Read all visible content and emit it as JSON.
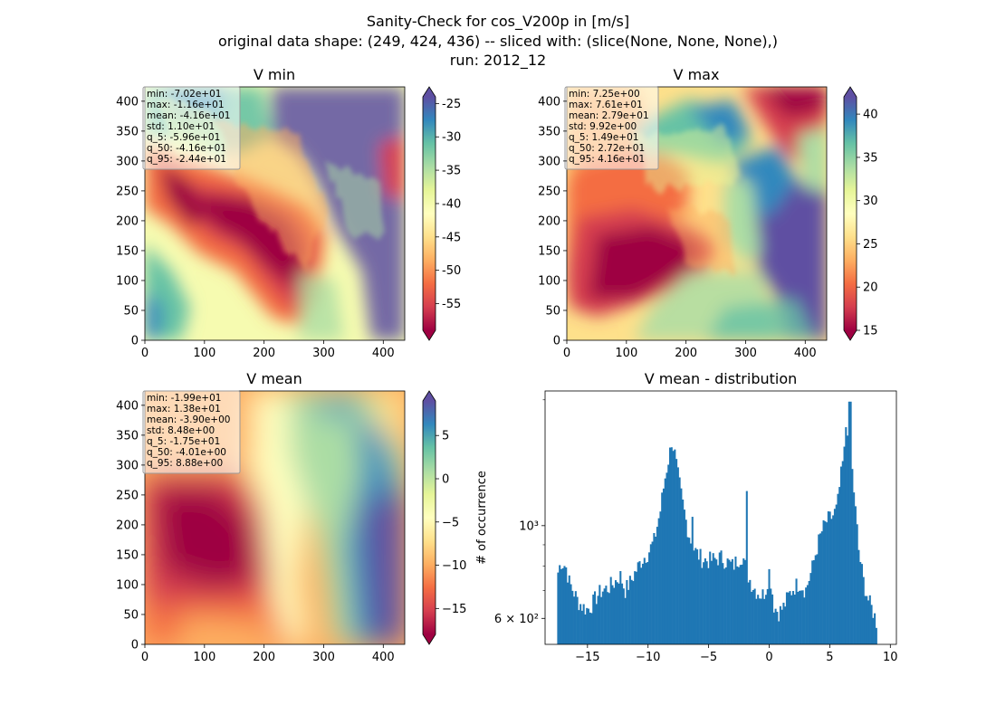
{
  "figure": {
    "title_lines": [
      "Sanity-Check for cos_V200p in [m/s]",
      "original data shape: (249, 424, 436) -- sliced with: (slice(None, None, None),)",
      "run: 2012_12"
    ]
  },
  "chart_data": [
    {
      "type": "heatmap",
      "title": "V min",
      "colormap": "Spectral",
      "xlim": [
        0,
        436
      ],
      "ylim": [
        0,
        424
      ],
      "xticks": [
        0,
        100,
        200,
        300,
        400
      ],
      "yticks": [
        0,
        50,
        100,
        150,
        200,
        250,
        300,
        350,
        400
      ],
      "colorbar": {
        "min": -59,
        "max": -24,
        "ticks": [
          "-25",
          "-30",
          "-35",
          "-40",
          "-45",
          "-50",
          "-55"
        ],
        "tick_values": [
          -25,
          -30,
          -35,
          -40,
          -45,
          -50,
          -55
        ],
        "extend": "both"
      },
      "stats": [
        "min: -7.02e+01",
        "max: -1.16e+01",
        "mean: -4.16e+01",
        "std: 1.10e+01",
        "q_5: -5.96e+01",
        "q_50: -4.16e+01",
        "q_95: -2.44e+01"
      ]
    },
    {
      "type": "heatmap",
      "title": "V max",
      "colormap": "Spectral",
      "xlim": [
        0,
        436
      ],
      "ylim": [
        0,
        424
      ],
      "xticks": [
        0,
        100,
        200,
        300,
        400
      ],
      "yticks": [
        0,
        50,
        100,
        150,
        200,
        250,
        300,
        350,
        400
      ],
      "colorbar": {
        "min": 15,
        "max": 42,
        "ticks": [
          "40",
          "35",
          "30",
          "25",
          "20",
          "15"
        ],
        "tick_values": [
          40,
          35,
          30,
          25,
          20,
          15
        ],
        "extend": "both"
      },
      "stats": [
        "min: 7.25e+00",
        "max: 7.61e+01",
        "mean: 2.79e+01",
        "std: 9.92e+00",
        "q_5: 1.49e+01",
        "q_50: 2.72e+01",
        "q_95: 4.16e+01"
      ]
    },
    {
      "type": "heatmap",
      "title": "V mean",
      "colormap": "Spectral",
      "xlim": [
        0,
        436
      ],
      "ylim": [
        0,
        424
      ],
      "xticks": [
        0,
        100,
        200,
        300,
        400
      ],
      "yticks": [
        0,
        50,
        100,
        150,
        200,
        250,
        300,
        350,
        400
      ],
      "colorbar": {
        "min": -18,
        "max": 9,
        "ticks": [
          "5",
          "0",
          "−5",
          "−10",
          "−15"
        ],
        "tick_values": [
          5,
          0,
          -5,
          -10,
          -15
        ],
        "extend": "both"
      },
      "stats": [
        "min: -1.99e+01",
        "max: 1.38e+01",
        "mean: -3.90e+00",
        "std: 8.48e+00",
        "q_5: -1.75e+01",
        "q_50: -4.01e+00",
        "q_95: 8.88e+00"
      ]
    },
    {
      "type": "bar",
      "title": "V mean - distribution",
      "ylabel": "# of occurrence",
      "yscale": "log",
      "xlim": [
        -18.5,
        10.5
      ],
      "ylim": [
        520,
        2100
      ],
      "xticks": [
        "−15",
        "−10",
        "−5",
        "0",
        "5",
        "10"
      ],
      "xtick_values": [
        -15,
        -10,
        -5,
        0,
        5,
        10
      ],
      "yticks": [
        "10³",
        "6 × 10²"
      ],
      "ytick_values": [
        1000,
        600
      ],
      "bin_range": [
        -17.5,
        8.9
      ],
      "anchors": [
        [
          -17.5,
          760
        ],
        [
          -17.2,
          820
        ],
        [
          -16.8,
          800
        ],
        [
          -16.5,
          730
        ],
        [
          -16.2,
          700
        ],
        [
          -15.8,
          660
        ],
        [
          -15.4,
          640
        ],
        [
          -15.0,
          630
        ],
        [
          -14.6,
          650
        ],
        [
          -14.2,
          680
        ],
        [
          -13.8,
          700
        ],
        [
          -13.3,
          710
        ],
        [
          -12.8,
          730
        ],
        [
          -12.3,
          760
        ],
        [
          -11.9,
          700
        ],
        [
          -11.5,
          730
        ],
        [
          -11.0,
          780
        ],
        [
          -10.5,
          830
        ],
        [
          -10.0,
          860
        ],
        [
          -9.5,
          920
        ],
        [
          -9.0,
          1080
        ],
        [
          -8.6,
          1300
        ],
        [
          -8.2,
          1500
        ],
        [
          -7.9,
          1550
        ],
        [
          -7.6,
          1350
        ],
        [
          -7.2,
          1150
        ],
        [
          -6.8,
          1000
        ],
        [
          -6.4,
          900
        ],
        [
          -6.0,
          860
        ],
        [
          -5.5,
          830
        ],
        [
          -5.0,
          825
        ],
        [
          -4.5,
          830
        ],
        [
          -4.0,
          840
        ],
        [
          -3.5,
          820
        ],
        [
          -3.0,
          800
        ],
        [
          -2.6,
          830
        ],
        [
          -2.2,
          850
        ],
        [
          -1.9,
          780
        ],
        [
          -1.5,
          730
        ],
        [
          -1.1,
          700
        ],
        [
          -0.6,
          680
        ],
        [
          -0.3,
          700
        ],
        [
          0.0,
          780
        ],
        [
          0.4,
          640
        ],
        [
          0.8,
          620
        ],
        [
          1.2,
          640
        ],
        [
          1.6,
          680
        ],
        [
          2.0,
          710
        ],
        [
          2.5,
          730
        ],
        [
          3.0,
          700
        ],
        [
          3.5,
          780
        ],
        [
          4.0,
          900
        ],
        [
          4.4,
          980
        ],
        [
          4.8,
          1030
        ],
        [
          5.2,
          1050
        ],
        [
          5.6,
          1100
        ],
        [
          5.9,
          1300
        ],
        [
          6.2,
          1500
        ],
        [
          6.5,
          1750
        ],
        [
          6.8,
          1400
        ],
        [
          7.1,
          1100
        ],
        [
          7.4,
          860
        ],
        [
          7.8,
          730
        ],
        [
          8.2,
          660
        ],
        [
          8.6,
          620
        ],
        [
          8.9,
          580
        ]
      ],
      "spikes": [
        [
          6.65,
          1980
        ],
        [
          -8.05,
          1540
        ],
        [
          -1.9,
          1210
        ],
        [
          -6.3,
          1050
        ],
        [
          6.35,
          1720
        ]
      ],
      "color": "#1f77b4"
    }
  ]
}
